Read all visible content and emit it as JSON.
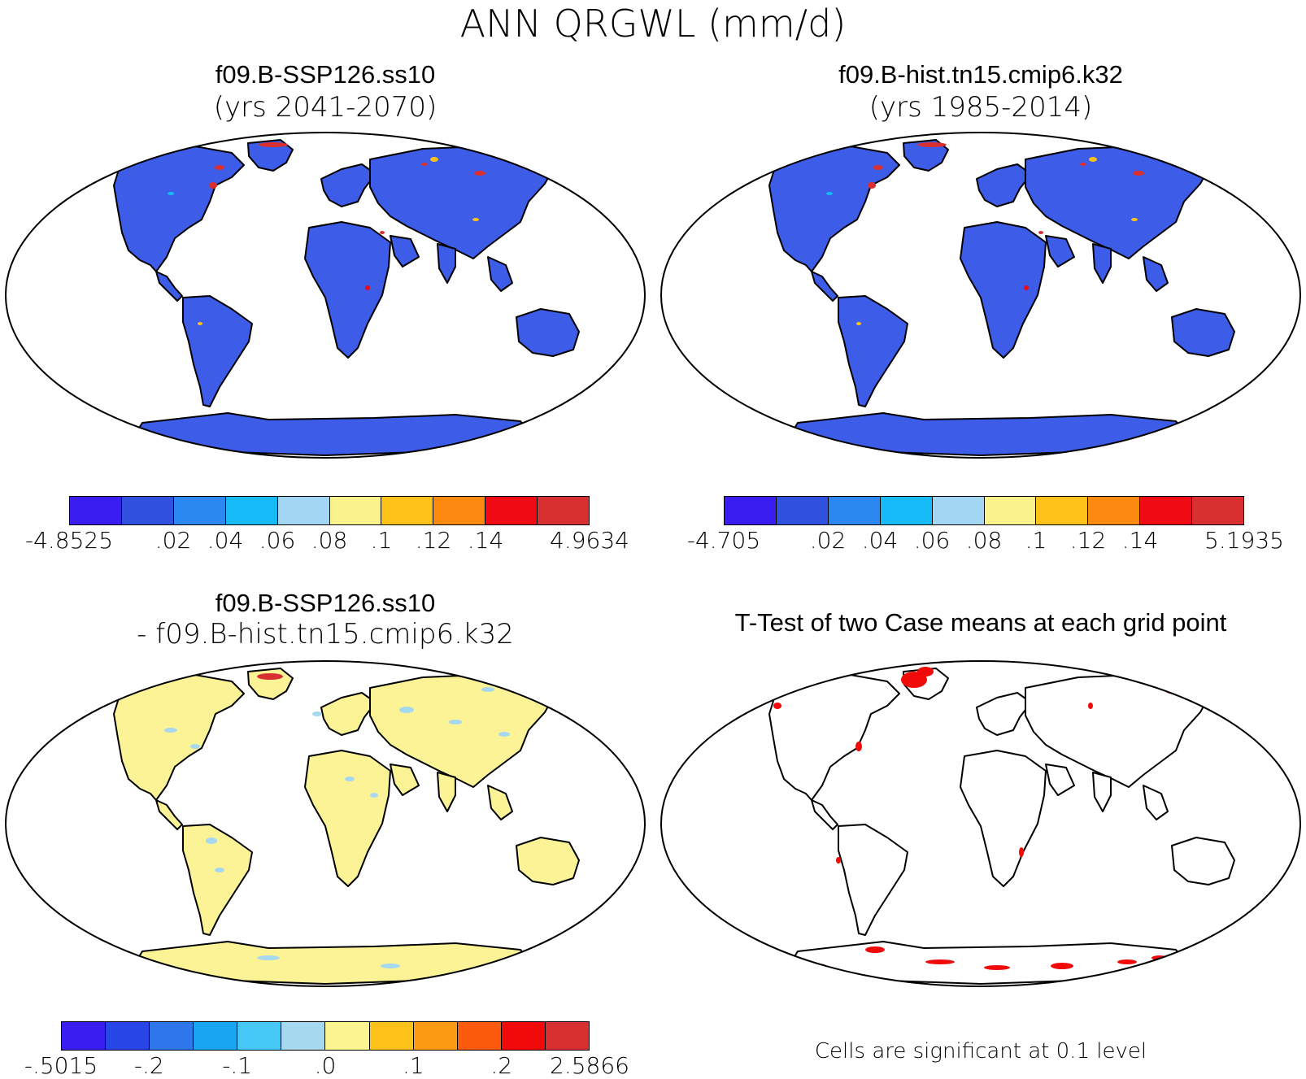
{
  "title": "ANN QRGWL (mm/d)",
  "panels": [
    {
      "id": "p1",
      "title": "f09.B-SSP126.ss10",
      "subtitle": "(yrs 2041-2070)",
      "fill": "#3d5ce8",
      "colorbar": {
        "colors": [
          "#3a1ef0",
          "#3050e0",
          "#2a88f0",
          "#16baf6",
          "#a2d6f2",
          "#faf28a",
          "#fcc21a",
          "#fc8a10",
          "#f00a14",
          "#d83030"
        ],
        "labels": [
          "-4.8525",
          ".02",
          ".04",
          ".06",
          ".08",
          ".1",
          ".12",
          ".14",
          "4.9634"
        ],
        "label_boundaries": [
          0,
          2,
          3,
          4,
          5,
          6,
          7,
          8,
          10
        ]
      }
    },
    {
      "id": "p2",
      "title": "f09.B-hist.tn15.cmip6.k32",
      "subtitle": "(yrs 1985-2014)",
      "fill": "#3d5ce8",
      "colorbar": {
        "colors": [
          "#3a1ef0",
          "#3050e0",
          "#2a88f0",
          "#16baf6",
          "#a2d6f2",
          "#faf28a",
          "#fcc21a",
          "#fc8a10",
          "#f00a14",
          "#d83030"
        ],
        "labels": [
          "-4.705",
          ".02",
          ".04",
          ".06",
          ".08",
          ".1",
          ".12",
          ".14",
          "5.1935"
        ],
        "label_boundaries": [
          0,
          2,
          3,
          4,
          5,
          6,
          7,
          8,
          10
        ]
      }
    },
    {
      "id": "p3",
      "title": "f09.B-SSP126.ss10",
      "subtitle": "- f09.B-hist.tn15.cmip6.k32",
      "fill": "#fbf395",
      "colorbar": {
        "colors": [
          "#3a1ef0",
          "#2846e6",
          "#2e76ea",
          "#18a6f2",
          "#46c8f6",
          "#a6d8f0",
          "#fcf592",
          "#fcc21a",
          "#fc9a14",
          "#fc5a0c",
          "#f00a0a",
          "#d83030"
        ],
        "labels": [
          "-.5015",
          "-.2",
          "-.1",
          ".0",
          ".1",
          ".2",
          "2.5866"
        ],
        "label_boundaries": [
          0,
          2,
          4,
          6,
          8,
          10,
          12
        ]
      }
    },
    {
      "id": "p4",
      "title": "T-Test of two Case means at each grid point",
      "fill": "#ffffff",
      "note": "Cells are significant at 0.1 level"
    }
  ]
}
